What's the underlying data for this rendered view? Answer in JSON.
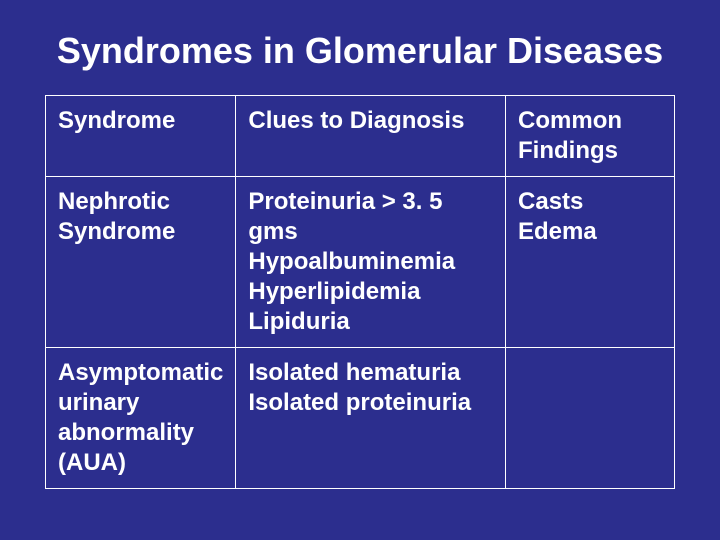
{
  "slide": {
    "background_color": "#2c2e8e",
    "text_color": "#ffffff",
    "border_color": "#ffffff",
    "font_family": "Arial",
    "title": "Syndromes in Glomerular Diseases",
    "title_fontsize": 36,
    "cell_fontsize": 24,
    "table": {
      "columns": [
        {
          "label": "Syndrome",
          "width_pct": 30
        },
        {
          "label": "Clues to Diagnosis",
          "width_pct": 43
        },
        {
          "label": "Common Findings",
          "width_pct": 27
        }
      ],
      "rows": [
        {
          "syndrome": "Nephrotic Syndrome",
          "clues": "Proteinuria > 3. 5 gms Hypoalbuminemia Hyperlipidemia Lipiduria",
          "findings": "Casts Edema"
        },
        {
          "syndrome": "Asymptomatic urinary abnormality (AUA)",
          "clues": "Isolated hematuria Isolated proteinuria",
          "findings": ""
        }
      ]
    }
  }
}
